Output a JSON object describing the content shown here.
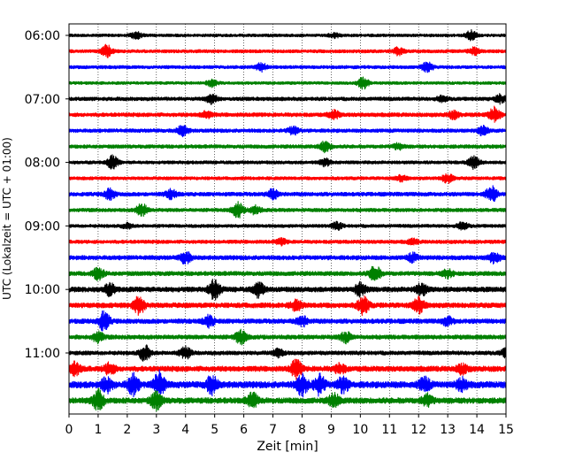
{
  "chart_data": {
    "type": "line",
    "title": "",
    "xlabel": "Zeit  [min]",
    "ylabel": "UTC (Lokalzeit = UTC + 01:00)",
    "xlim": [
      0,
      15
    ],
    "x_ticks": [
      0,
      1,
      2,
      3,
      4,
      5,
      6,
      7,
      8,
      9,
      10,
      11,
      12,
      13,
      14,
      15
    ],
    "y_tick_labels": [
      "06:00",
      "07:00",
      "08:00",
      "09:00",
      "10:00",
      "11:00"
    ],
    "y_ticks_trace_index": [
      0,
      4,
      8,
      12,
      16,
      20
    ],
    "traces_start": "06:00",
    "trace_interval_minutes": 15,
    "trace_count": 24,
    "colors": [
      "#000000",
      "#ff0000",
      "#0000ff",
      "#008000"
    ],
    "grid": "vertical dotted at each minute",
    "traces": [
      {
        "start": "06:00",
        "level": 0.8,
        "events": [
          [
            2.3,
            0.9
          ],
          [
            9.1,
            0.6
          ],
          [
            13.8,
            1.2
          ]
        ]
      },
      {
        "start": "06:15",
        "level": 0.9,
        "events": [
          [
            1.3,
            1.5
          ],
          [
            11.3,
            0.9
          ],
          [
            13.9,
            0.9
          ]
        ]
      },
      {
        "start": "06:30",
        "level": 0.9,
        "events": [
          [
            6.6,
            1.0
          ],
          [
            12.3,
            1.2
          ]
        ]
      },
      {
        "start": "06:45",
        "level": 0.8,
        "events": [
          [
            4.9,
            0.9
          ],
          [
            10.1,
            1.4
          ]
        ]
      },
      {
        "start": "07:00",
        "level": 1.0,
        "events": [
          [
            4.9,
            1.1
          ],
          [
            12.8,
            0.7
          ],
          [
            14.8,
            1.0
          ]
        ]
      },
      {
        "start": "07:15",
        "level": 1.1,
        "events": [
          [
            4.7,
            0.8
          ],
          [
            9.1,
            1.0
          ],
          [
            13.2,
            0.9
          ],
          [
            14.6,
            1.8
          ]
        ]
      },
      {
        "start": "07:30",
        "level": 1.0,
        "events": [
          [
            3.9,
            1.3
          ],
          [
            7.7,
            1.0
          ],
          [
            14.2,
            1.1
          ]
        ]
      },
      {
        "start": "07:45",
        "level": 1.0,
        "events": [
          [
            8.8,
            1.3
          ],
          [
            11.3,
            0.7
          ]
        ]
      },
      {
        "start": "08:00",
        "level": 0.9,
        "events": [
          [
            1.5,
            1.7
          ],
          [
            8.8,
            1.0
          ],
          [
            13.9,
            1.6
          ]
        ]
      },
      {
        "start": "08:15",
        "level": 0.9,
        "events": [
          [
            13.0,
            1.2
          ],
          [
            11.4,
            0.7
          ]
        ]
      },
      {
        "start": "08:30",
        "level": 1.1,
        "events": [
          [
            1.4,
            1.3
          ],
          [
            3.5,
            1.1
          ],
          [
            7.0,
            1.2
          ],
          [
            14.5,
            2.0
          ]
        ]
      },
      {
        "start": "08:45",
        "level": 1.0,
        "events": [
          [
            2.5,
            1.6
          ],
          [
            5.8,
            1.9
          ],
          [
            6.4,
            1.0
          ]
        ]
      },
      {
        "start": "09:00",
        "level": 0.9,
        "events": [
          [
            2.0,
            0.6
          ],
          [
            9.2,
            0.9
          ],
          [
            13.5,
            0.9
          ]
        ]
      },
      {
        "start": "09:15",
        "level": 1.0,
        "events": [
          [
            7.3,
            0.7
          ],
          [
            11.8,
            0.6
          ]
        ]
      },
      {
        "start": "09:30",
        "level": 1.2,
        "events": [
          [
            4.0,
            1.5
          ],
          [
            11.8,
            1.0
          ],
          [
            14.6,
            1.3
          ]
        ]
      },
      {
        "start": "09:45",
        "level": 1.2,
        "events": [
          [
            1.0,
            1.6
          ],
          [
            10.5,
            2.0
          ],
          [
            13.0,
            1.0
          ]
        ]
      },
      {
        "start": "10:00",
        "level": 1.4,
        "events": [
          [
            1.4,
            1.4
          ],
          [
            5.0,
            2.5
          ],
          [
            6.5,
            1.8
          ],
          [
            10.0,
            1.6
          ],
          [
            12.1,
            1.5
          ]
        ]
      },
      {
        "start": "10:15",
        "level": 1.4,
        "events": [
          [
            2.4,
            2.3
          ],
          [
            7.8,
            1.2
          ],
          [
            10.1,
            2.2
          ],
          [
            12.0,
            2.0
          ]
        ]
      },
      {
        "start": "10:30",
        "level": 1.3,
        "events": [
          [
            1.2,
            2.5
          ],
          [
            4.8,
            1.4
          ],
          [
            8.0,
            1.2
          ],
          [
            13.0,
            1.0
          ]
        ]
      },
      {
        "start": "10:45",
        "level": 1.2,
        "events": [
          [
            1.0,
            1.3
          ],
          [
            5.9,
            1.8
          ],
          [
            9.5,
            1.3
          ]
        ]
      },
      {
        "start": "11:00",
        "level": 1.1,
        "events": [
          [
            2.6,
            2.0
          ],
          [
            4.0,
            1.5
          ],
          [
            7.2,
            1.0
          ],
          [
            15.0,
            1.0
          ]
        ]
      },
      {
        "start": "11:15",
        "level": 1.5,
        "events": [
          [
            0.2,
            1.6
          ],
          [
            1.4,
            1.4
          ],
          [
            7.8,
            2.2
          ],
          [
            9.3,
            1.2
          ],
          [
            13.5,
            1.2
          ]
        ]
      },
      {
        "start": "11:30",
        "level": 1.8,
        "events": [
          [
            1.3,
            1.8
          ],
          [
            2.2,
            2.6
          ],
          [
            3.1,
            3.2
          ],
          [
            4.9,
            2.2
          ],
          [
            8.0,
            2.6
          ],
          [
            8.6,
            2.4
          ],
          [
            9.4,
            2.0
          ],
          [
            12.2,
            1.8
          ],
          [
            13.5,
            1.5
          ]
        ]
      },
      {
        "start": "11:45",
        "level": 1.6,
        "events": [
          [
            1.0,
            2.6
          ],
          [
            3.0,
            2.2
          ],
          [
            6.3,
            1.8
          ],
          [
            9.1,
            1.6
          ],
          [
            12.3,
            1.4
          ]
        ]
      }
    ]
  }
}
